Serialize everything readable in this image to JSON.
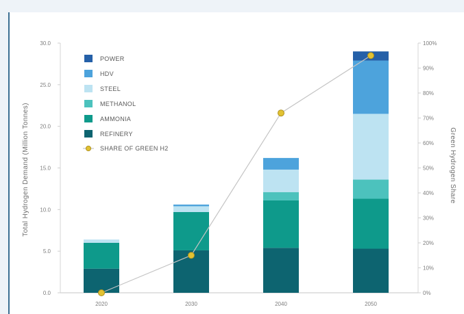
{
  "chart_data": {
    "type": "bar",
    "stacked": true,
    "categories": [
      "2020",
      "2030",
      "2040",
      "2050"
    ],
    "ylabel": "Total Hydrogen Demand (Million Tonnes)",
    "y2label": "Green Hydrogen Share",
    "ylim": [
      0,
      30
    ],
    "y2lim": [
      0,
      100
    ],
    "yticks": [
      "0.0",
      "5.0",
      "10.0",
      "15.0",
      "20.0",
      "25.0",
      "30.0"
    ],
    "y2ticks": [
      "0%",
      "10%",
      "20%",
      "30%",
      "40%",
      "50%",
      "60%",
      "70%",
      "80%",
      "90%",
      "100%"
    ],
    "legend_position": "top-left",
    "series": [
      {
        "name": "REFINERY",
        "color": "#0d6470",
        "values": [
          2.9,
          5.1,
          5.4,
          5.3
        ]
      },
      {
        "name": "AMMONIA",
        "color": "#0e9a8b",
        "values": [
          3.1,
          4.6,
          5.7,
          6.0
        ]
      },
      {
        "name": "METHANOL",
        "color": "#4cc2bd",
        "values": [
          0.0,
          0.0,
          1.0,
          2.3
        ]
      },
      {
        "name": "STEEL",
        "color": "#bde3f2",
        "values": [
          0.4,
          0.7,
          2.7,
          7.9
        ]
      },
      {
        "name": "HDV",
        "color": "#4da3dc",
        "values": [
          0.0,
          0.2,
          1.4,
          6.4
        ]
      },
      {
        "name": "POWER",
        "color": "#2560a8",
        "values": [
          0.0,
          0.0,
          0.0,
          1.1
        ]
      }
    ],
    "line_series": {
      "name": "SHARE OF GREEN H2",
      "axis": "right",
      "color": "#e2c233",
      "values": [
        0,
        15,
        72,
        95
      ]
    }
  }
}
